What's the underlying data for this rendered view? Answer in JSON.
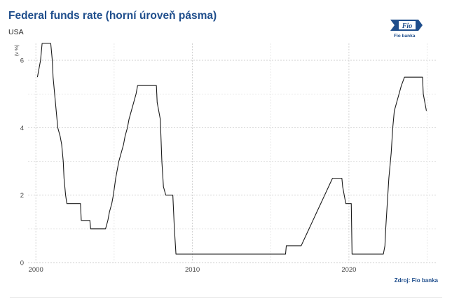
{
  "header": {
    "title": "Federal funds rate (horní úroveň pásma)",
    "subtitle": "USA",
    "source": "Zdroj: Fio banka",
    "logo_text": "Fio banka",
    "brand_color": "#1f4e8c"
  },
  "chart_data": {
    "type": "line",
    "title": "Federal funds rate (horní úroveň pásma)",
    "subtitle": "USA",
    "xlabel": "",
    "ylabel": "(v %)",
    "xlim": [
      1999.5,
      2025.6
    ],
    "ylim": [
      0,
      6.5
    ],
    "x_ticks": [
      2000,
      2010,
      2020
    ],
    "y_ticks": [
      0,
      2,
      4,
      6
    ],
    "grid": true,
    "legend": "none",
    "series": [
      {
        "color": "#1a1a1a",
        "points": [
          [
            2000.1,
            5.5
          ],
          [
            2000.2,
            5.75
          ],
          [
            2000.3,
            6.0
          ],
          [
            2000.4,
            6.5
          ],
          [
            2000.95,
            6.5
          ],
          [
            2001.05,
            6.0
          ],
          [
            2001.1,
            5.5
          ],
          [
            2001.2,
            5.0
          ],
          [
            2001.3,
            4.5
          ],
          [
            2001.4,
            4.0
          ],
          [
            2001.55,
            3.75
          ],
          [
            2001.65,
            3.5
          ],
          [
            2001.75,
            3.0
          ],
          [
            2001.8,
            2.5
          ],
          [
            2001.9,
            2.0
          ],
          [
            2001.98,
            1.75
          ],
          [
            2002.85,
            1.75
          ],
          [
            2002.9,
            1.25
          ],
          [
            2003.45,
            1.25
          ],
          [
            2003.5,
            1.0
          ],
          [
            2004.45,
            1.0
          ],
          [
            2004.6,
            1.25
          ],
          [
            2004.7,
            1.5
          ],
          [
            2004.85,
            1.75
          ],
          [
            2004.95,
            2.0
          ],
          [
            2005.1,
            2.5
          ],
          [
            2005.2,
            2.75
          ],
          [
            2005.3,
            3.0
          ],
          [
            2005.45,
            3.25
          ],
          [
            2005.6,
            3.5
          ],
          [
            2005.7,
            3.75
          ],
          [
            2005.85,
            4.0
          ],
          [
            2005.95,
            4.25
          ],
          [
            2006.1,
            4.5
          ],
          [
            2006.25,
            4.75
          ],
          [
            2006.4,
            5.0
          ],
          [
            2006.5,
            5.25
          ],
          [
            2007.7,
            5.25
          ],
          [
            2007.75,
            4.75
          ],
          [
            2007.85,
            4.5
          ],
          [
            2007.95,
            4.25
          ],
          [
            2008.05,
            3.0
          ],
          [
            2008.15,
            2.25
          ],
          [
            2008.3,
            2.0
          ],
          [
            2008.75,
            2.0
          ],
          [
            2008.8,
            1.5
          ],
          [
            2008.85,
            1.0
          ],
          [
            2008.95,
            0.25
          ],
          [
            2015.95,
            0.25
          ],
          [
            2016.0,
            0.5
          ],
          [
            2016.95,
            0.5
          ],
          [
            2017.2,
            0.75
          ],
          [
            2017.45,
            1.0
          ],
          [
            2017.7,
            1.25
          ],
          [
            2017.95,
            1.5
          ],
          [
            2018.2,
            1.75
          ],
          [
            2018.45,
            2.0
          ],
          [
            2018.7,
            2.25
          ],
          [
            2018.95,
            2.5
          ],
          [
            2019.55,
            2.5
          ],
          [
            2019.6,
            2.25
          ],
          [
            2019.7,
            2.0
          ],
          [
            2019.8,
            1.75
          ],
          [
            2020.15,
            1.75
          ],
          [
            2020.2,
            0.25
          ],
          [
            2022.2,
            0.25
          ],
          [
            2022.3,
            0.5
          ],
          [
            2022.35,
            1.0
          ],
          [
            2022.45,
            1.75
          ],
          [
            2022.55,
            2.5
          ],
          [
            2022.7,
            3.25
          ],
          [
            2022.8,
            4.0
          ],
          [
            2022.9,
            4.5
          ],
          [
            2023.05,
            4.75
          ],
          [
            2023.2,
            5.0
          ],
          [
            2023.35,
            5.25
          ],
          [
            2023.55,
            5.5
          ],
          [
            2024.7,
            5.5
          ],
          [
            2024.75,
            5.0
          ],
          [
            2024.85,
            4.75
          ],
          [
            2024.95,
            4.5
          ]
        ]
      }
    ]
  }
}
